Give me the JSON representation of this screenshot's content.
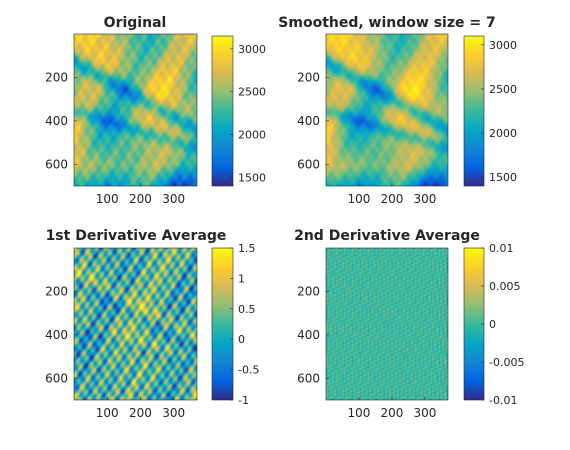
{
  "chart_data": [
    {
      "type": "heatmap",
      "title": "Original",
      "x_ticks": [
        "100",
        "200",
        "300"
      ],
      "y_ticks": [
        "200",
        "400",
        "600"
      ],
      "colorbar": {
        "ticks": [
          "3000",
          "2500",
          "2000",
          "1500"
        ],
        "range": [
          1400,
          3150
        ]
      },
      "texture": "terrain"
    },
    {
      "type": "heatmap",
      "title": "Smoothed, window size = 7",
      "x_ticks": [
        "100",
        "200",
        "300"
      ],
      "y_ticks": [
        "200",
        "400",
        "600"
      ],
      "colorbar": {
        "ticks": [
          "3000",
          "2500",
          "2000",
          "1500"
        ],
        "range": [
          1400,
          3100
        ]
      },
      "texture": "terrain-smooth"
    },
    {
      "type": "heatmap",
      "title": "1st Derivative Average",
      "x_ticks": [
        "100",
        "200",
        "300"
      ],
      "y_ticks": [
        "200",
        "400",
        "600"
      ],
      "colorbar": {
        "ticks": [
          "1.5",
          "1",
          "0.5",
          "0",
          "-0.5",
          "-1"
        ],
        "range": [
          -1,
          1.5
        ]
      },
      "texture": "deriv1"
    },
    {
      "type": "heatmap",
      "title": "2nd Derivative Average",
      "x_ticks": [
        "100",
        "200",
        "300"
      ],
      "y_ticks": [
        "200",
        "400",
        "600"
      ],
      "colorbar": {
        "ticks": [
          "0.01",
          "0.005",
          "0",
          "-0.005",
          "-0.01"
        ],
        "range": [
          -0.01,
          0.01
        ]
      },
      "texture": "deriv2"
    }
  ],
  "colormap": "parula",
  "colors": {
    "parula_stops": [
      "#352a87",
      "#0363e1",
      "#1485d4",
      "#06a7c6",
      "#38b99e",
      "#92bf73",
      "#d9ba56",
      "#fcce2e",
      "#f9fb0e"
    ],
    "axis": "#262626"
  }
}
